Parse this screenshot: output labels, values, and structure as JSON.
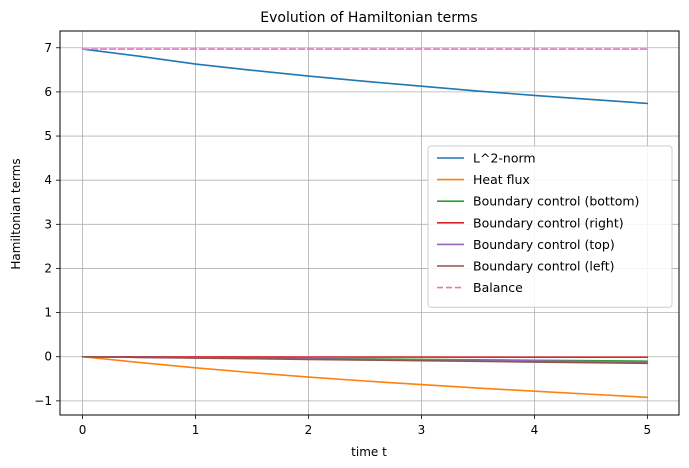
{
  "chart_data": {
    "type": "line",
    "title": "Evolution of Hamiltonian terms",
    "xlabel": "time t",
    "ylabel": "Hamiltonian terms",
    "xlim": [
      -0.2,
      5.28
    ],
    "ylim": [
      -1.32,
      7.38
    ],
    "xticks": [
      0,
      1,
      2,
      3,
      4,
      5
    ],
    "yticks": [
      -1,
      0,
      1,
      2,
      3,
      4,
      5,
      6,
      7
    ],
    "grid": true,
    "legend_position": "center-right",
    "x": [
      0,
      0.5,
      1,
      1.5,
      2,
      2.5,
      3,
      3.5,
      4,
      4.5,
      5
    ],
    "series": [
      {
        "name": "L^2-norm",
        "color": "#1f77b4",
        "dash": false,
        "values": [
          6.97,
          6.81,
          6.63,
          6.49,
          6.36,
          6.24,
          6.13,
          6.02,
          5.92,
          5.83,
          5.74
        ]
      },
      {
        "name": "Heat flux",
        "color": "#ff7f0e",
        "dash": false,
        "values": [
          0,
          -0.13,
          -0.25,
          -0.36,
          -0.46,
          -0.55,
          -0.63,
          -0.71,
          -0.78,
          -0.85,
          -0.92
        ]
      },
      {
        "name": "Boundary control (bottom)",
        "color": "#2ca02c",
        "dash": false,
        "values": [
          0,
          -0.01,
          -0.02,
          -0.03,
          -0.04,
          -0.05,
          -0.06,
          -0.07,
          -0.08,
          -0.09,
          -0.1
        ]
      },
      {
        "name": "Boundary control (right)",
        "color": "#d62728",
        "dash": false,
        "values": [
          0,
          -0.002,
          -0.004,
          -0.005,
          -0.006,
          -0.007,
          -0.008,
          -0.009,
          -0.009,
          -0.01,
          -0.01
        ]
      },
      {
        "name": "Boundary control (top)",
        "color": "#9467bd",
        "dash": false,
        "values": [
          0,
          -0.012,
          -0.024,
          -0.036,
          -0.048,
          -0.06,
          -0.072,
          -0.084,
          -0.096,
          -0.108,
          -0.12
        ]
      },
      {
        "name": "Boundary control (left)",
        "color": "#8c564b",
        "dash": false,
        "values": [
          0,
          -0.015,
          -0.03,
          -0.045,
          -0.06,
          -0.075,
          -0.09,
          -0.105,
          -0.12,
          -0.135,
          -0.15
        ]
      },
      {
        "name": "Balance",
        "color": "#e377c2",
        "dash": true,
        "values": [
          6.97,
          6.97,
          6.97,
          6.97,
          6.97,
          6.97,
          6.97,
          6.97,
          6.97,
          6.97,
          6.97
        ]
      }
    ]
  }
}
